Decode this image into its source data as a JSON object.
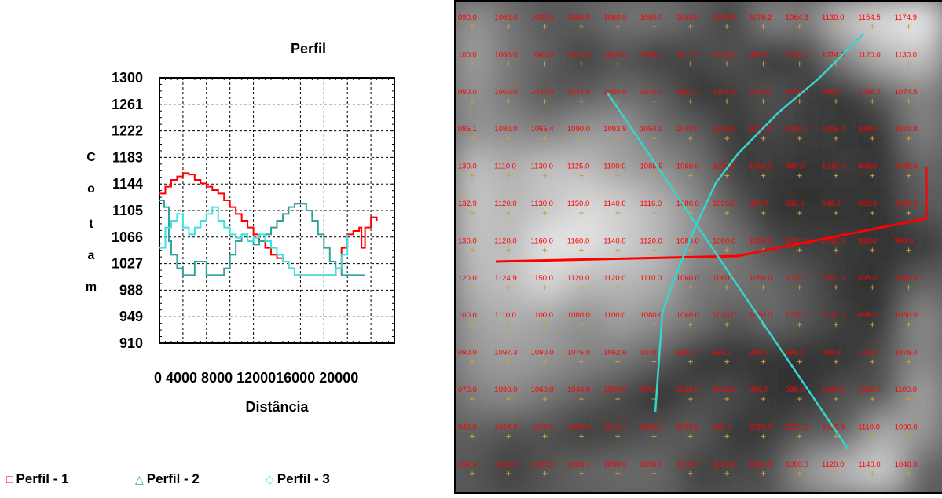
{
  "chart_data": {
    "type": "line",
    "title": "Perfil",
    "xlabel": "Distância",
    "ylabel": "Cota m",
    "xlim": [
      0,
      20000
    ],
    "ylim": [
      910,
      1300
    ],
    "grid": true,
    "legend_position": "bottom",
    "x_ticks": [
      "0",
      "4000",
      "8000",
      "12000",
      "16000",
      "20000"
    ],
    "x_ticks_printed": "0  4000  8000 1200016000 20000",
    "y_ticks": [
      "1300",
      "1261",
      "1222",
      "1183",
      "1144",
      "1105",
      "1066",
      "1027",
      "988",
      "949",
      "910"
    ],
    "ylabel_chars": [
      "C",
      "o",
      "t",
      "a",
      "m"
    ],
    "series": [
      {
        "name": "Perfil - 1",
        "color": "#ff0000",
        "marker": "□",
        "x": [
          0,
          500,
          1000,
          1500,
          2000,
          2500,
          3000,
          3500,
          4000,
          4500,
          5000,
          5500,
          6000,
          6500,
          7000,
          7500,
          8000,
          8500,
          9000,
          9500,
          10000,
          10500,
          11000,
          11500,
          12000,
          12500,
          13000,
          13500,
          14000,
          14500,
          15000,
          15500,
          16000,
          16500,
          17000,
          17200,
          17500,
          18000,
          18500
        ],
        "y": [
          1130,
          1140,
          1150,
          1155,
          1160,
          1158,
          1150,
          1145,
          1140,
          1135,
          1130,
          1120,
          1110,
          1100,
          1090,
          1080,
          1070,
          1060,
          1050,
          1040,
          1035,
          1030,
          1020,
          1010,
          1010,
          1010,
          1010,
          1010,
          1010,
          1010,
          1020,
          1050,
          1070,
          1075,
          1080,
          1050,
          1080,
          1095,
          1090
        ]
      },
      {
        "name": "Perfil - 2",
        "color": "#2fa49a",
        "marker": "△",
        "x": [
          0,
          400,
          800,
          1000,
          1500,
          2000,
          2500,
          3000,
          3500,
          4000,
          4500,
          5000,
          5500,
          6000,
          6500,
          7000,
          7500,
          8000,
          8500,
          9000,
          9500,
          10000,
          10500,
          11000,
          11500,
          12000,
          12500,
          13000,
          13500,
          14000,
          14500,
          15000,
          15500,
          16000,
          16500,
          17000,
          17500
        ],
        "y": [
          1120,
          1110,
          1060,
          1040,
          1020,
          1010,
          1010,
          1030,
          1030,
          1010,
          1010,
          1010,
          1020,
          1040,
          1060,
          1070,
          1060,
          1055,
          1060,
          1070,
          1080,
          1090,
          1100,
          1110,
          1115,
          1115,
          1105,
          1090,
          1070,
          1050,
          1030,
          1020,
          1010,
          1010,
          1010,
          1010,
          1010
        ]
      },
      {
        "name": "Perfil - 3",
        "color": "#3fe0e0",
        "marker": "◇",
        "x": [
          0,
          500,
          1000,
          1500,
          2000,
          2500,
          3000,
          3500,
          4000,
          4500,
          5000,
          5500,
          6000,
          6500,
          7000,
          7500,
          8000,
          8500,
          9000,
          9500,
          10000,
          10500,
          11000,
          11500,
          12000,
          12500,
          13000,
          13500,
          14000,
          14500,
          15000,
          15500,
          16000
        ],
        "y": [
          1050,
          1080,
          1090,
          1100,
          1080,
          1070,
          1080,
          1090,
          1100,
          1110,
          1090,
          1080,
          1070,
          1065,
          1070,
          1060,
          1065,
          1070,
          1060,
          1050,
          1040,
          1030,
          1020,
          1010,
          1010,
          1010,
          1010,
          1010,
          1010,
          1010,
          1020,
          1040,
          1070
        ]
      }
    ]
  },
  "map": {
    "type": "heatmap",
    "rows": [
      [
        "090.0",
        "1060.0",
        "1030.0",
        "1040.0",
        "1060.0",
        "1060.0",
        "1040.0",
        "1005.9",
        "1076.2",
        "1064.3",
        "1130.0",
        "1154.5",
        "1174.9"
      ],
      [
        "100.0",
        "1060.0",
        "1040.0",
        "1010.0",
        "1030.0",
        "1005.2",
        "1017.0",
        "1030.0",
        "998.0",
        "1015.0",
        "1074.5",
        "1120.0",
        "1130.0"
      ],
      [
        "090.0",
        "1060.0",
        "1030.0",
        "1034.9",
        "1050.0",
        "1040.0",
        "998.0",
        "1008.3",
        "1030.0",
        "1010.0",
        "998.0",
        "1035.7",
        "1074.5"
      ],
      [
        "085.1",
        "1080.0",
        "1065.4",
        "1090.0",
        "1093.9",
        "1054.9",
        "1040.0",
        "1005.0",
        "1018.0",
        "1010.0",
        "1005.4",
        "998.0",
        "1070.8"
      ],
      [
        "130.0",
        "1110.0",
        "1130.0",
        "1125.0",
        "1100.0",
        "1085.9",
        "1060.0",
        "1010.0",
        "1010.0",
        "998.0",
        "1010.0",
        "998.0",
        "1045.9"
      ],
      [
        "132.9",
        "1120.0",
        "1130.0",
        "1150.0",
        "1140.0",
        "1116.0",
        "1080.0",
        "1035.0",
        "998.0",
        "998.0",
        "998.0",
        "998.0",
        "1035.6"
      ],
      [
        "130.0",
        "1120.0",
        "1160.0",
        "1160.0",
        "1140.0",
        "1120.0",
        "1080.0",
        "1060.0",
        "1020.0",
        "1010.0",
        "1010.0",
        "998.0",
        "998.0"
      ],
      [
        "120.0",
        "1124.9",
        "1150.0",
        "1120.0",
        "1120.0",
        "1110.0",
        "1060.0",
        "1060.9",
        "1050.0",
        "1030.0",
        "1000.0",
        "998.0",
        "1040.0"
      ],
      [
        "100.0",
        "1110.0",
        "1100.0",
        "1080.0",
        "1100.0",
        "1080.0",
        "1060.0",
        "1030.0",
        "1050.0",
        "1030.0",
        "1010.0",
        "998.0",
        "1080.0"
      ],
      [
        "090.0",
        "1097.3",
        "1090.0",
        "1075.0",
        "1062.9",
        "1040.0",
        "998.0",
        "998.0",
        "998.0",
        "998.0",
        "998.0",
        "1025.7",
        "1076.4"
      ],
      [
        "070.0",
        "1080.0",
        "1060.0",
        "1040.0",
        "1020.0",
        "980.0",
        "1020.0",
        "1025.0",
        "998.0",
        "998.0",
        "1030.1",
        "1023.7",
        "1100.0"
      ],
      [
        "040.0",
        "1024.8",
        "1024.7",
        "1004.0",
        "1015.4",
        "1030.0",
        "1039.8",
        "998.5",
        "1010.0",
        "1033.1",
        "1035.8",
        "1110.0",
        "1090.0"
      ],
      [
        "032.4",
        "1010.0",
        "1030.0",
        "1045.1",
        "1050.0",
        "1050.0",
        "1010.0",
        "1020.0",
        "1024.6",
        "1090.0",
        "1120.0",
        "1140.0",
        "1040.0"
      ]
    ],
    "label_color": "#ff0000",
    "grid_marker_color": "#c8a040",
    "profile_colors": {
      "red": "#ff0000",
      "cyan": "#38d4cc"
    }
  }
}
